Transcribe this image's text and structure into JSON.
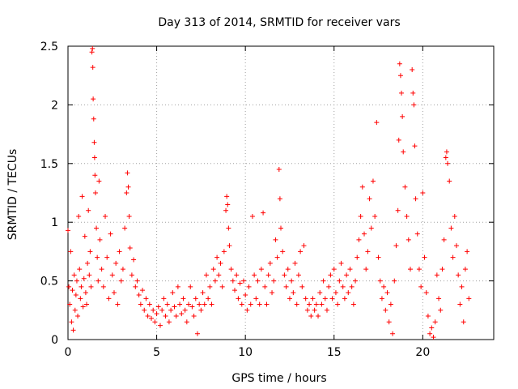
{
  "chart_data": {
    "type": "scatter",
    "title": "Day 313 of 2014, SRMTID for receiver vars",
    "xlabel": "GPS time / hours",
    "ylabel": "SRMTID / TECUs",
    "xlim": [
      0,
      24
    ],
    "ylim": [
      0,
      2.5
    ],
    "x_ticks": [
      0,
      5,
      10,
      15,
      20
    ],
    "x_tick_labels": [
      "0",
      "5",
      "10",
      "15",
      "20"
    ],
    "y_ticks": [
      0,
      0.5,
      1,
      1.5,
      2,
      2.5
    ],
    "y_tick_labels": [
      "0",
      "0.5",
      "1",
      "1.5",
      "2",
      "2.5"
    ],
    "grid": true,
    "marker": "+",
    "color": "#ff0000",
    "series": [
      {
        "name": "SRMTID",
        "points": [
          [
            0.0,
            0.93
          ],
          [
            0.05,
            0.45
          ],
          [
            0.1,
            0.3
          ],
          [
            0.15,
            0.75
          ],
          [
            0.2,
            0.15
          ],
          [
            0.25,
            0.42
          ],
          [
            0.3,
            0.08
          ],
          [
            0.35,
            0.55
          ],
          [
            0.4,
            0.25
          ],
          [
            0.45,
            0.38
          ],
          [
            0.5,
            0.5
          ],
          [
            0.55,
            0.2
          ],
          [
            0.6,
            1.05
          ],
          [
            0.65,
            0.6
          ],
          [
            0.7,
            0.35
          ],
          [
            0.75,
            0.45
          ],
          [
            0.8,
            1.22
          ],
          [
            0.85,
            0.28
          ],
          [
            0.9,
            0.52
          ],
          [
            0.95,
            0.88
          ],
          [
            1.0,
            0.4
          ],
          [
            1.05,
            0.3
          ],
          [
            1.1,
            0.65
          ],
          [
            1.15,
            1.1
          ],
          [
            1.2,
            0.55
          ],
          [
            1.25,
            0.75
          ],
          [
            1.3,
            0.45
          ],
          [
            1.35,
            2.45
          ],
          [
            1.38,
            2.48
          ],
          [
            1.4,
            2.32
          ],
          [
            1.42,
            2.05
          ],
          [
            1.45,
            1.88
          ],
          [
            1.48,
            1.68
          ],
          [
            1.5,
            1.55
          ],
          [
            1.52,
            1.4
          ],
          [
            1.55,
            1.25
          ],
          [
            1.6,
            0.95
          ],
          [
            1.65,
            0.7
          ],
          [
            1.7,
            0.5
          ],
          [
            1.75,
            1.35
          ],
          [
            1.8,
            0.85
          ],
          [
            1.9,
            0.6
          ],
          [
            2.0,
            0.45
          ],
          [
            2.1,
            1.05
          ],
          [
            2.2,
            0.7
          ],
          [
            2.3,
            0.35
          ],
          [
            2.4,
            0.9
          ],
          [
            2.5,
            0.55
          ],
          [
            2.6,
            0.4
          ],
          [
            2.7,
            0.65
          ],
          [
            2.8,
            0.3
          ],
          [
            2.9,
            0.75
          ],
          [
            3.0,
            0.5
          ],
          [
            3.1,
            0.6
          ],
          [
            3.2,
            0.95
          ],
          [
            3.3,
            1.25
          ],
          [
            3.35,
            1.42
          ],
          [
            3.4,
            1.3
          ],
          [
            3.45,
            1.05
          ],
          [
            3.5,
            0.78
          ],
          [
            3.6,
            0.55
          ],
          [
            3.7,
            0.68
          ],
          [
            3.8,
            0.45
          ],
          [
            3.9,
            0.5
          ],
          [
            4.0,
            0.38
          ],
          [
            4.1,
            0.3
          ],
          [
            4.2,
            0.42
          ],
          [
            4.3,
            0.25
          ],
          [
            4.4,
            0.35
          ],
          [
            4.5,
            0.2
          ],
          [
            4.6,
            0.3
          ],
          [
            4.7,
            0.18
          ],
          [
            4.8,
            0.25
          ],
          [
            4.9,
            0.15
          ],
          [
            5.0,
            0.22
          ],
          [
            5.1,
            0.28
          ],
          [
            5.2,
            0.12
          ],
          [
            5.3,
            0.25
          ],
          [
            5.4,
            0.35
          ],
          [
            5.5,
            0.2
          ],
          [
            5.6,
            0.3
          ],
          [
            5.7,
            0.15
          ],
          [
            5.8,
            0.25
          ],
          [
            5.9,
            0.4
          ],
          [
            6.0,
            0.28
          ],
          [
            6.1,
            0.2
          ],
          [
            6.2,
            0.45
          ],
          [
            6.3,
            0.3
          ],
          [
            6.4,
            0.22
          ],
          [
            6.5,
            0.35
          ],
          [
            6.6,
            0.25
          ],
          [
            6.7,
            0.15
          ],
          [
            6.8,
            0.3
          ],
          [
            6.9,
            0.45
          ],
          [
            7.0,
            0.28
          ],
          [
            7.1,
            0.2
          ],
          [
            7.2,
            0.35
          ],
          [
            7.3,
            0.05
          ],
          [
            7.4,
            0.3
          ],
          [
            7.5,
            0.25
          ],
          [
            7.6,
            0.4
          ],
          [
            7.7,
            0.3
          ],
          [
            7.8,
            0.55
          ],
          [
            7.9,
            0.35
          ],
          [
            8.0,
            0.45
          ],
          [
            8.1,
            0.3
          ],
          [
            8.2,
            0.6
          ],
          [
            8.3,
            0.5
          ],
          [
            8.4,
            0.7
          ],
          [
            8.5,
            0.55
          ],
          [
            8.6,
            0.65
          ],
          [
            8.7,
            0.45
          ],
          [
            8.8,
            0.75
          ],
          [
            8.9,
            1.1
          ],
          [
            8.95,
            1.22
          ],
          [
            9.0,
            1.15
          ],
          [
            9.05,
            0.95
          ],
          [
            9.1,
            0.8
          ],
          [
            9.2,
            0.6
          ],
          [
            9.3,
            0.5
          ],
          [
            9.4,
            0.42
          ],
          [
            9.5,
            0.55
          ],
          [
            9.6,
            0.35
          ],
          [
            9.7,
            0.48
          ],
          [
            9.8,
            0.3
          ],
          [
            9.9,
            0.5
          ],
          [
            10.0,
            0.38
          ],
          [
            10.1,
            0.25
          ],
          [
            10.2,
            0.45
          ],
          [
            10.3,
            0.3
          ],
          [
            10.4,
            1.05
          ],
          [
            10.5,
            0.55
          ],
          [
            10.6,
            0.35
          ],
          [
            10.7,
            0.5
          ],
          [
            10.8,
            0.3
          ],
          [
            10.9,
            0.6
          ],
          [
            11.0,
            1.08
          ],
          [
            11.1,
            0.45
          ],
          [
            11.2,
            0.3
          ],
          [
            11.3,
            0.55
          ],
          [
            11.4,
            0.65
          ],
          [
            11.5,
            0.4
          ],
          [
            11.6,
            0.5
          ],
          [
            11.7,
            0.85
          ],
          [
            11.8,
            0.7
          ],
          [
            11.9,
            1.45
          ],
          [
            11.95,
            1.2
          ],
          [
            12.0,
            0.95
          ],
          [
            12.1,
            0.75
          ],
          [
            12.2,
            0.55
          ],
          [
            12.3,
            0.45
          ],
          [
            12.4,
            0.6
          ],
          [
            12.5,
            0.35
          ],
          [
            12.6,
            0.5
          ],
          [
            12.7,
            0.4
          ],
          [
            12.8,
            0.65
          ],
          [
            12.9,
            0.3
          ],
          [
            13.0,
            0.55
          ],
          [
            13.1,
            0.75
          ],
          [
            13.2,
            0.45
          ],
          [
            13.3,
            0.8
          ],
          [
            13.4,
            0.35
          ],
          [
            13.5,
            0.25
          ],
          [
            13.6,
            0.3
          ],
          [
            13.7,
            0.2
          ],
          [
            13.8,
            0.35
          ],
          [
            13.9,
            0.25
          ],
          [
            14.0,
            0.3
          ],
          [
            14.1,
            0.2
          ],
          [
            14.2,
            0.4
          ],
          [
            14.3,
            0.3
          ],
          [
            14.4,
            0.5
          ],
          [
            14.5,
            0.35
          ],
          [
            14.6,
            0.25
          ],
          [
            14.7,
            0.45
          ],
          [
            14.8,
            0.55
          ],
          [
            14.9,
            0.35
          ],
          [
            15.0,
            0.6
          ],
          [
            15.1,
            0.4
          ],
          [
            15.2,
            0.3
          ],
          [
            15.3,
            0.5
          ],
          [
            15.4,
            0.65
          ],
          [
            15.5,
            0.45
          ],
          [
            15.6,
            0.35
          ],
          [
            15.7,
            0.55
          ],
          [
            15.8,
            0.4
          ],
          [
            15.9,
            0.6
          ],
          [
            16.0,
            0.45
          ],
          [
            16.1,
            0.3
          ],
          [
            16.2,
            0.5
          ],
          [
            16.3,
            0.7
          ],
          [
            16.4,
            0.85
          ],
          [
            16.5,
            1.05
          ],
          [
            16.6,
            1.3
          ],
          [
            16.7,
            0.9
          ],
          [
            16.8,
            0.6
          ],
          [
            16.9,
            0.75
          ],
          [
            17.0,
            1.2
          ],
          [
            17.1,
            0.95
          ],
          [
            17.2,
            1.35
          ],
          [
            17.3,
            1.05
          ],
          [
            17.4,
            1.85
          ],
          [
            17.5,
            0.7
          ],
          [
            17.6,
            0.5
          ],
          [
            17.7,
            0.35
          ],
          [
            17.8,
            0.45
          ],
          [
            17.9,
            0.25
          ],
          [
            18.0,
            0.4
          ],
          [
            18.1,
            0.15
          ],
          [
            18.2,
            0.3
          ],
          [
            18.3,
            0.05
          ],
          [
            18.4,
            0.5
          ],
          [
            18.5,
            0.8
          ],
          [
            18.6,
            1.1
          ],
          [
            18.65,
            1.7
          ],
          [
            18.7,
            2.35
          ],
          [
            18.75,
            2.25
          ],
          [
            18.8,
            2.1
          ],
          [
            18.85,
            1.9
          ],
          [
            18.9,
            1.6
          ],
          [
            19.0,
            1.3
          ],
          [
            19.1,
            1.05
          ],
          [
            19.2,
            0.85
          ],
          [
            19.3,
            0.6
          ],
          [
            19.4,
            2.3
          ],
          [
            19.45,
            2.1
          ],
          [
            19.5,
            2.0
          ],
          [
            19.55,
            1.65
          ],
          [
            19.6,
            1.2
          ],
          [
            19.7,
            0.9
          ],
          [
            19.8,
            0.6
          ],
          [
            19.9,
            0.45
          ],
          [
            20.0,
            1.25
          ],
          [
            20.1,
            0.7
          ],
          [
            20.2,
            0.4
          ],
          [
            20.3,
            0.2
          ],
          [
            20.4,
            0.05
          ],
          [
            20.5,
            0.1
          ],
          [
            20.6,
            0.02
          ],
          [
            20.7,
            0.15
          ],
          [
            20.8,
            0.55
          ],
          [
            20.9,
            0.35
          ],
          [
            21.0,
            0.25
          ],
          [
            21.1,
            0.6
          ],
          [
            21.2,
            0.85
          ],
          [
            21.3,
            1.55
          ],
          [
            21.35,
            1.6
          ],
          [
            21.4,
            1.5
          ],
          [
            21.5,
            1.35
          ],
          [
            21.6,
            0.95
          ],
          [
            21.7,
            0.7
          ],
          [
            21.8,
            1.05
          ],
          [
            21.9,
            0.8
          ],
          [
            22.0,
            0.55
          ],
          [
            22.1,
            0.3
          ],
          [
            22.2,
            0.45
          ],
          [
            22.3,
            0.15
          ],
          [
            22.4,
            0.6
          ],
          [
            22.5,
            0.75
          ],
          [
            22.6,
            0.35
          ]
        ]
      }
    ]
  }
}
